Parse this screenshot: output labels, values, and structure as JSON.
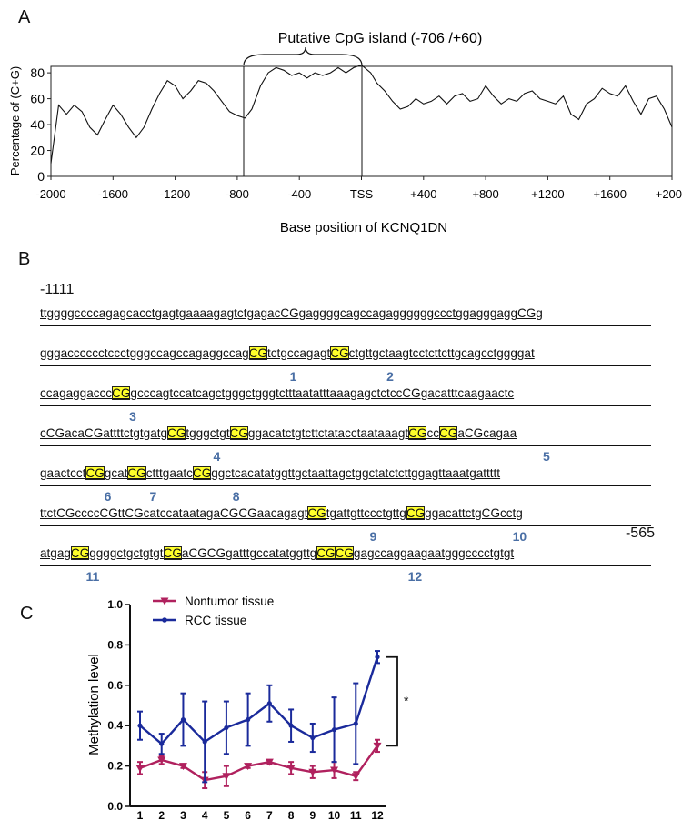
{
  "panel_labels": {
    "a": "A",
    "b": "B",
    "c": "C"
  },
  "panel_a": {
    "bracket_label": "Putative CpG island (-706 /+60)",
    "y_axis_label": "Percentage of (C+G)",
    "x_axis_label": "Base position of KCNQ1DN",
    "y_ticks": [
      "0",
      "20",
      "40",
      "60",
      "80"
    ],
    "x_ticks": [
      "-2000",
      "-1600",
      "-1200",
      "-800",
      "-400",
      "TSS",
      "+400",
      "+800",
      "+1200",
      "+1600",
      "+2000"
    ]
  },
  "panel_b": {
    "start_label": "-1111",
    "end_label": "-565",
    "lines": [
      "ttggggccccagagcacctgagtgaaaagagtctgagacCGgaggggcagccagaggggggccctggagggaggCGg",
      "gggacccccctccctgggccagccagaggccagCGtctgccagagtCGctgttgctaagtcctcttcttgcagcctggggat",
      "ccagaggacccCGgcccagtccatcagctgggctgggtctttaatatttaaagagctctccCGgacatttcaagaactc",
      "cCGacaCGattttctgtgatgCGtgggctgtCGggacatctgtcttctatacctaataaagtCGccCGaCGcagaa",
      "gaactcctCGgcatCGctttgaatcCGggctcacatatggttgctaattagctggctatctcttggagttaaatgattttt",
      "ttctCGccccCGttCGcatccataatagaCGCGaacagagtCGtgattgttccctgttgCGggacattctgCGcctg",
      "atgagCGggggctgctgtgtCGaCGCGgatttgccatatggttgCGCGgagccaggaagaatgggcccctgtgt"
    ],
    "site_numbers": [
      "1",
      "2",
      "3",
      "4",
      "5",
      "6",
      "7",
      "8",
      "9",
      "10",
      "11",
      "12"
    ]
  },
  "chart_data": [
    {
      "type": "line",
      "title": "",
      "xlabel": "Base position of KCNQ1DN",
      "ylabel": "Percentage of (C+G)",
      "xlim": [
        -2000,
        2000
      ],
      "ylim": [
        0,
        85
      ],
      "x_tick_labels": [
        "-2000",
        "-1600",
        "-1200",
        "-800",
        "-400",
        "TSS",
        "+400",
        "+800",
        "+1200",
        "+1600",
        "+2000"
      ],
      "region_marks_x": [
        -706,
        60
      ],
      "series": [
        {
          "x": [
            -2000,
            -1950,
            -1900,
            -1850,
            -1800,
            -1750,
            -1700,
            -1650,
            -1600,
            -1550,
            -1500,
            -1450,
            -1400,
            -1350,
            -1300,
            -1250,
            -1200,
            -1150,
            -1100,
            -1050,
            -1000,
            -950,
            -900,
            -850,
            -800,
            -750,
            -706,
            -650,
            -600,
            -550,
            -500,
            -450,
            -400,
            -350,
            -300,
            -250,
            -200,
            -150,
            -100,
            -50,
            0,
            60,
            100,
            150,
            200,
            250,
            300,
            350,
            400,
            450,
            500,
            550,
            600,
            650,
            700,
            750,
            800,
            850,
            900,
            950,
            1000,
            1050,
            1100,
            1150,
            1200,
            1250,
            1300,
            1350,
            1400,
            1450,
            1500,
            1550,
            1600,
            1650,
            1700,
            1750,
            1800,
            1850,
            1900,
            1950,
            2000
          ],
          "y": [
            10,
            55,
            48,
            55,
            50,
            38,
            32,
            44,
            55,
            48,
            38,
            30,
            38,
            52,
            64,
            74,
            70,
            60,
            66,
            74,
            72,
            66,
            58,
            50,
            47,
            45,
            52,
            70,
            80,
            84,
            82,
            78,
            80,
            76,
            80,
            78,
            80,
            84,
            80,
            84,
            86,
            80,
            72,
            66,
            58,
            52,
            54,
            60,
            56,
            58,
            62,
            56,
            62,
            64,
            58,
            60,
            70,
            62,
            56,
            60,
            58,
            64,
            66,
            60,
            58,
            56,
            62,
            48,
            44,
            56,
            60,
            68,
            64,
            62,
            70,
            58,
            48,
            60,
            62,
            52,
            38
          ]
        }
      ]
    },
    {
      "type": "line",
      "title": "",
      "xlabel": "",
      "ylabel": "Methylation level",
      "ylim": [
        0,
        1.0
      ],
      "y_tick_labels": [
        "0.0",
        "0.2",
        "0.4",
        "0.6",
        "0.8",
        "1.0"
      ],
      "categories": [
        "1",
        "2",
        "3",
        "4",
        "5",
        "6",
        "7",
        "8",
        "9",
        "10",
        "11",
        "12"
      ],
      "legend": "top-left",
      "significance_label": "*",
      "series": [
        {
          "name": "Nontumor tissue",
          "color": "#b0215e",
          "marker": "triangle-down",
          "values": [
            0.19,
            0.23,
            0.2,
            0.13,
            0.15,
            0.2,
            0.22,
            0.19,
            0.17,
            0.18,
            0.15,
            0.3
          ],
          "errors": [
            0.03,
            0.02,
            0.01,
            0.04,
            0.05,
            0.01,
            0.01,
            0.03,
            0.03,
            0.04,
            0.02,
            0.03
          ]
        },
        {
          "name": "RCC tissue",
          "color": "#1a2a9b",
          "marker": "circle",
          "values": [
            0.4,
            0.31,
            0.43,
            0.32,
            0.39,
            0.43,
            0.51,
            0.4,
            0.34,
            0.38,
            0.41,
            0.74
          ],
          "errors": [
            0.07,
            0.05,
            0.13,
            0.2,
            0.13,
            0.13,
            0.09,
            0.08,
            0.07,
            0.16,
            0.2,
            0.03
          ]
        }
      ]
    }
  ]
}
